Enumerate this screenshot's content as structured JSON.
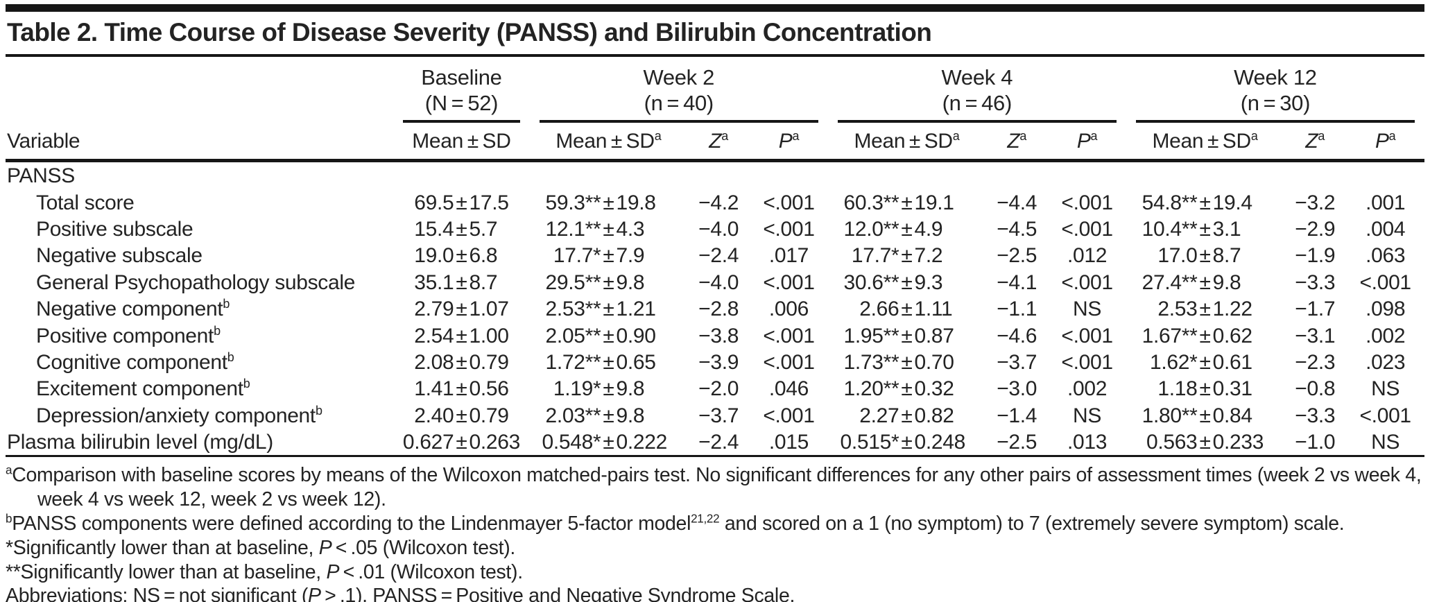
{
  "title": "Table 2. Time Course of Disease Severity (PANSS) and Bilirubin Concentration",
  "groups": [
    {
      "name": "Baseline",
      "n": "(N = 52)"
    },
    {
      "name": "Week 2",
      "n": "(n = 40)"
    },
    {
      "name": "Week 4",
      "n": "(n = 46)"
    },
    {
      "name": "Week 12",
      "n": "(n = 30)"
    }
  ],
  "columns": {
    "variable": "Variable",
    "baseline_mean": "Mean ± SD",
    "week_mean": "Mean ± SD",
    "week_mean_sup": "a",
    "z": "Z",
    "z_sup": "a",
    "p": "P",
    "p_sup": "a"
  },
  "rows": [
    {
      "label": "PANSS",
      "section": true
    },
    {
      "label": "Total score",
      "indent": true,
      "baseline": "69.5±17.5",
      "w2m": "59.3**±19.8",
      "w2z": "−4.2",
      "w2p": "<.001",
      "w4m": "60.3**±19.1",
      "w4z": "−4.4",
      "w4p": "<.001",
      "w12m": "54.8**±19.4",
      "w12z": "−3.2",
      "w12p": ".001"
    },
    {
      "label": "Positive subscale",
      "indent": true,
      "baseline": "15.4±5.7",
      "w2m": "12.1**±4.3",
      "w2z": "−4.0",
      "w2p": "<.001",
      "w4m": "12.0**±4.9",
      "w4z": "−4.5",
      "w4p": "<.001",
      "w12m": "10.4**±3.1",
      "w12z": "−2.9",
      "w12p": ".004"
    },
    {
      "label": "Negative subscale",
      "indent": true,
      "baseline": "19.0±6.8",
      "w2m": "17.7*±7.9",
      "w2z": "−2.4",
      "w2p": ".017",
      "w4m": "17.7*±7.2",
      "w4z": "−2.5",
      "w4p": ".012",
      "w12m": "17.0±8.7",
      "w12z": "−1.9",
      "w12p": ".063"
    },
    {
      "label": "General Psychopathology subscale",
      "indent": true,
      "baseline": "35.1±8.7",
      "w2m": "29.5**±9.8",
      "w2z": "−4.0",
      "w2p": "<.001",
      "w4m": "30.6**±9.3",
      "w4z": "−4.1",
      "w4p": "<.001",
      "w12m": "27.4**±9.8",
      "w12z": "−3.3",
      "w12p": "<.001"
    },
    {
      "label": "Negative component",
      "sup": "b",
      "indent": true,
      "baseline": "2.79±1.07",
      "w2m": "2.53**±1.21",
      "w2z": "−2.8",
      "w2p": ".006",
      "w4m": "2.66±1.11",
      "w4z": "−1.1",
      "w4p": "NS",
      "w12m": "2.53±1.22",
      "w12z": "−1.7",
      "w12p": ".098"
    },
    {
      "label": "Positive component",
      "sup": "b",
      "indent": true,
      "baseline": "2.54±1.00",
      "w2m": "2.05**±0.90",
      "w2z": "−3.8",
      "w2p": "<.001",
      "w4m": "1.95**±0.87",
      "w4z": "−4.6",
      "w4p": "<.001",
      "w12m": "1.67**±0.62",
      "w12z": "−3.1",
      "w12p": ".002"
    },
    {
      "label": "Cognitive component",
      "sup": "b",
      "indent": true,
      "baseline": "2.08±0.79",
      "w2m": "1.72**±0.65",
      "w2z": "−3.9",
      "w2p": "<.001",
      "w4m": "1.73**±0.70",
      "w4z": "−3.7",
      "w4p": "<.001",
      "w12m": "1.62*±0.61",
      "w12z": "−2.3",
      "w12p": ".023"
    },
    {
      "label": "Excitement component",
      "sup": "b",
      "indent": true,
      "baseline": "1.41±0.56",
      "w2m": "1.19*±9.8",
      "w2z": "−2.0",
      "w2p": ".046",
      "w4m": "1.20**±0.32",
      "w4z": "−3.0",
      "w4p": ".002",
      "w12m": "1.18±0.31",
      "w12z": "−0.8",
      "w12p": "NS"
    },
    {
      "label": "Depression/anxiety component",
      "sup": "b",
      "indent": true,
      "baseline": "2.40±0.79",
      "w2m": "2.03**±9.8",
      "w2z": "−3.7",
      "w2p": "<.001",
      "w4m": "2.27±0.82",
      "w4z": "−1.4",
      "w4p": "NS",
      "w12m": "1.80**±0.84",
      "w12z": "−3.3",
      "w12p": "<.001"
    },
    {
      "label": "Plasma bilirubin level (mg/dL)",
      "baseline": "0.627±0.263",
      "w2m": "0.548*±0.222",
      "w2z": "−2.4",
      "w2p": ".015",
      "w4m": "0.515*±0.248",
      "w4z": "−2.5",
      "w4p": ".013",
      "w12m": "0.563±0.233",
      "w12z": "−1.0",
      "w12p": "NS"
    }
  ],
  "footnotes": [
    {
      "marker": "a",
      "sup": true,
      "text": "Comparison with baseline scores by means of the Wilcoxon matched-pairs test. No significant differences for any other pairs of assessment times (week 2 vs week 4, week 4 vs week 12, week 2 vs week 12)."
    },
    {
      "marker": "b",
      "sup": true,
      "text": "PANSS components were defined according to the Lindenmayer 5-factor model^{21,22} and scored on a 1 (no symptom) to 7 (extremely severe symptom) scale."
    },
    {
      "marker": "*",
      "sup": false,
      "text": "Significantly lower than at baseline, P < .05 (Wilcoxon test)."
    },
    {
      "marker": "**",
      "sup": false,
      "text": "Significantly lower than at baseline, P < .01 (Wilcoxon test)."
    },
    {
      "marker": "",
      "sup": false,
      "text": "Abbreviations: NS = not significant (P > .1), PANSS = Positive and Negative Syndrome Scale."
    }
  ]
}
